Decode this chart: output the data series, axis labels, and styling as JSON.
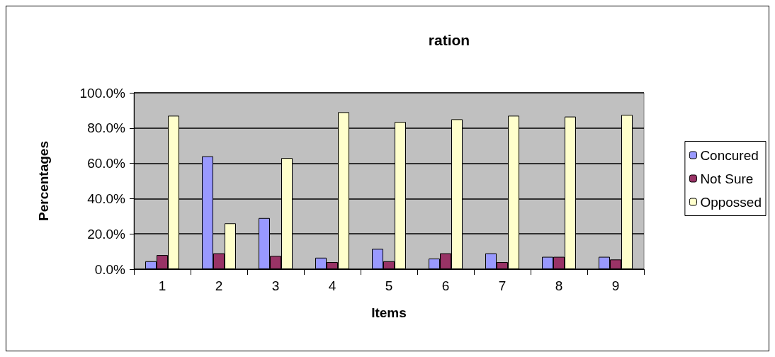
{
  "chart_data": {
    "type": "bar",
    "title": "ration",
    "xlabel": "Items",
    "ylabel": "Percentages",
    "categories": [
      "1",
      "2",
      "3",
      "4",
      "5",
      "6",
      "7",
      "8",
      "9"
    ],
    "series": [
      {
        "name": "Concured",
        "color": "#9999ff",
        "values": [
          4.5,
          64,
          29,
          6.5,
          11.5,
          6,
          9,
          7,
          7
        ]
      },
      {
        "name": "Not Sure",
        "color": "#993366",
        "values": [
          8,
          9,
          7.5,
          4,
          4.5,
          9,
          4,
          7,
          5.5
        ]
      },
      {
        "name": "Oppossed",
        "color": "#ffffcc",
        "values": [
          87,
          26,
          63,
          89,
          83.5,
          85,
          87,
          86.5,
          87.5
        ]
      }
    ],
    "ylim": [
      0,
      100
    ],
    "yticks": [
      {
        "value": 0,
        "label": "0.0%"
      },
      {
        "value": 20,
        "label": "20.0%"
      },
      {
        "value": 40,
        "label": "40.0%"
      },
      {
        "value": 60,
        "label": "60.0%"
      },
      {
        "value": 80,
        "label": "80.0%"
      },
      {
        "value": 100,
        "label": "100.0%"
      }
    ],
    "grid": "y",
    "legend": "right"
  }
}
